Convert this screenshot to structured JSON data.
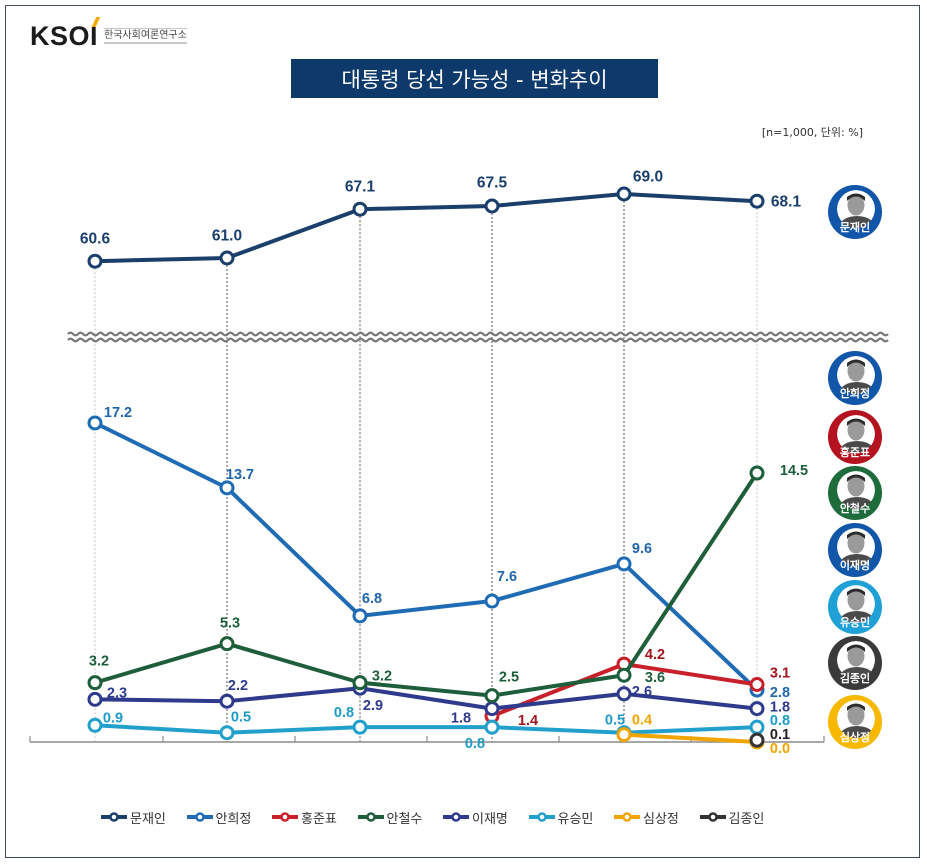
{
  "logo": {
    "mark": "KSOI",
    "name": "한국사회여론연구소"
  },
  "note": "[n=1,000, 단위: %]",
  "chart_data": {
    "type": "line",
    "title": "대통령 당선 가능성 - 변화추이",
    "xlabel": "",
    "ylabel": "",
    "unit": "%",
    "y_axis_break": true,
    "grid": false,
    "legend_position": "bottom",
    "panels": {
      "upper": {
        "ylim": [
          60,
          70
        ]
      },
      "lower": {
        "ylim": [
          0,
          18
        ]
      }
    },
    "series": [
      {
        "name": "문재인",
        "color": "#1a3f6b",
        "label_color": "#1a3f6b",
        "panel": "upper",
        "values": [
          60.6,
          61.0,
          67.1,
          67.5,
          69.0,
          68.1
        ]
      },
      {
        "name": "안희정",
        "color": "#1f6cb5",
        "label_color": "#1f66ad",
        "panel": "lower",
        "values": [
          17.2,
          13.7,
          6.8,
          7.6,
          9.6,
          2.8
        ]
      },
      {
        "name": "홍준표",
        "color": "#c8202b",
        "label_color": "#a0141e",
        "panel": "lower",
        "values": [
          null,
          null,
          null,
          1.4,
          4.2,
          3.1
        ]
      },
      {
        "name": "안철수",
        "color": "#1e5e3a",
        "label_color": "#1e5e3a",
        "panel": "lower",
        "values": [
          3.2,
          5.3,
          3.2,
          2.5,
          3.6,
          14.5
        ]
      },
      {
        "name": "이재명",
        "color": "#2e3a8c",
        "label_color": "#2e3a8c",
        "panel": "lower",
        "values": [
          2.3,
          2.2,
          2.9,
          1.8,
          2.6,
          1.8
        ]
      },
      {
        "name": "유승민",
        "color": "#22a0cc",
        "label_color": "#1e9ac6",
        "panel": "lower",
        "values": [
          0.9,
          0.5,
          0.8,
          0.8,
          0.5,
          0.8
        ]
      },
      {
        "name": "심상정",
        "color": "#f0a500",
        "label_color": "#f0a500",
        "panel": "lower",
        "values": [
          null,
          null,
          null,
          null,
          0.4,
          0.0
        ]
      },
      {
        "name": "김종인",
        "color": "#333333",
        "label_color": "#222222",
        "panel": "lower",
        "values": [
          null,
          null,
          null,
          null,
          null,
          0.1
        ]
      }
    ]
  },
  "portraits": [
    {
      "name": "문재인",
      "color": "#1156a8"
    },
    {
      "name": "안희정",
      "color": "#1156a8"
    },
    {
      "name": "홍준표",
      "color": "#b3121e"
    },
    {
      "name": "안철수",
      "color": "#1e6b3c"
    },
    {
      "name": "이재명",
      "color": "#1156a8"
    },
    {
      "name": "유승민",
      "color": "#1fa0d6"
    },
    {
      "name": "김종인",
      "color": "#3a3a3a"
    },
    {
      "name": "심상정",
      "color": "#f6b900"
    }
  ]
}
